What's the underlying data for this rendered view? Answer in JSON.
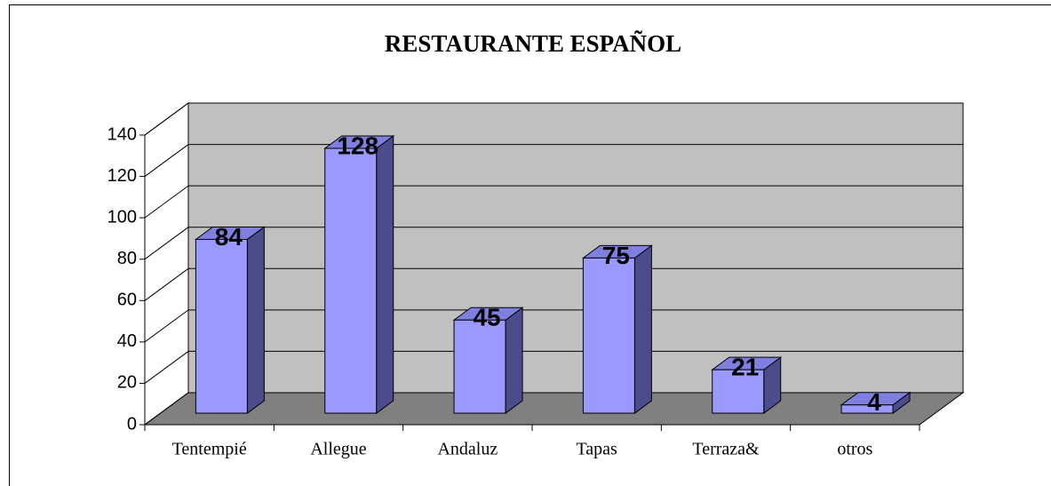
{
  "chart_data": {
    "type": "bar3d",
    "title": "RESTAURANTE ESPAÑOL",
    "categories": [
      "Tentempié",
      "Allegue",
      "Andaluz",
      "Tapas",
      "Terraza&",
      "otros"
    ],
    "values": [
      84,
      128,
      45,
      75,
      21,
      4
    ],
    "color": "#9999ff",
    "side_color": "#4c4c8c",
    "top_color": "#7f7fe0",
    "wall_color": "#c0c0c0",
    "floor_color": "#808080",
    "ylim": [
      0,
      140
    ],
    "yticks": [
      0,
      20,
      40,
      60,
      80,
      100,
      120,
      140
    ],
    "grid": true
  }
}
